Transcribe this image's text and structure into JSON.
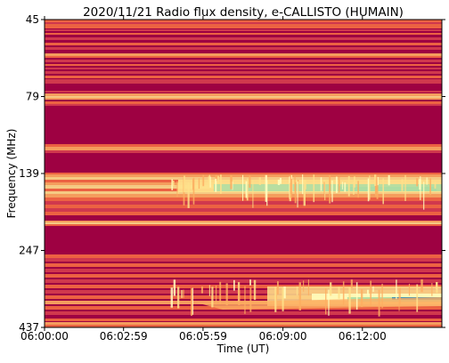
{
  "chart_data": {
    "type": "heatmap",
    "title": "2020/11/21  Radio flux density, e-CALLISTO (HUMAIN)",
    "xlabel": "Time (UT)",
    "ylabel": "Frequency (MHz)",
    "x_tick_labels": [
      "06:00:00",
      "06:02:59",
      "06:05:59",
      "06:09:00",
      "06:12:00"
    ],
    "x_tick_seconds": [
      0,
      179,
      359,
      540,
      720
    ],
    "x_range_seconds": [
      0,
      900
    ],
    "y_tick_labels": [
      "45",
      "79",
      "139",
      "247",
      "437"
    ],
    "y_axis_inverted": true,
    "colormap": "Spectral",
    "colors": {
      "background": "#9e0142",
      "low_mid": "#d53e4f",
      "mid": "#f46d43",
      "high_mid": "#fdae61",
      "high": "#fee08b",
      "peak": "#ffffbf",
      "strong": "#abdda4",
      "strongest": "#3288bd"
    },
    "features": [
      {
        "name": "broad-emission-band",
        "freq_range_mhz": [
          139,
          175
        ],
        "time_range_seconds": [
          330,
          900
        ]
      },
      {
        "name": "drifting-emission-band",
        "freq_range_mhz": [
          330,
          437
        ],
        "time_range_seconds": [
          520,
          900
        ]
      }
    ]
  }
}
